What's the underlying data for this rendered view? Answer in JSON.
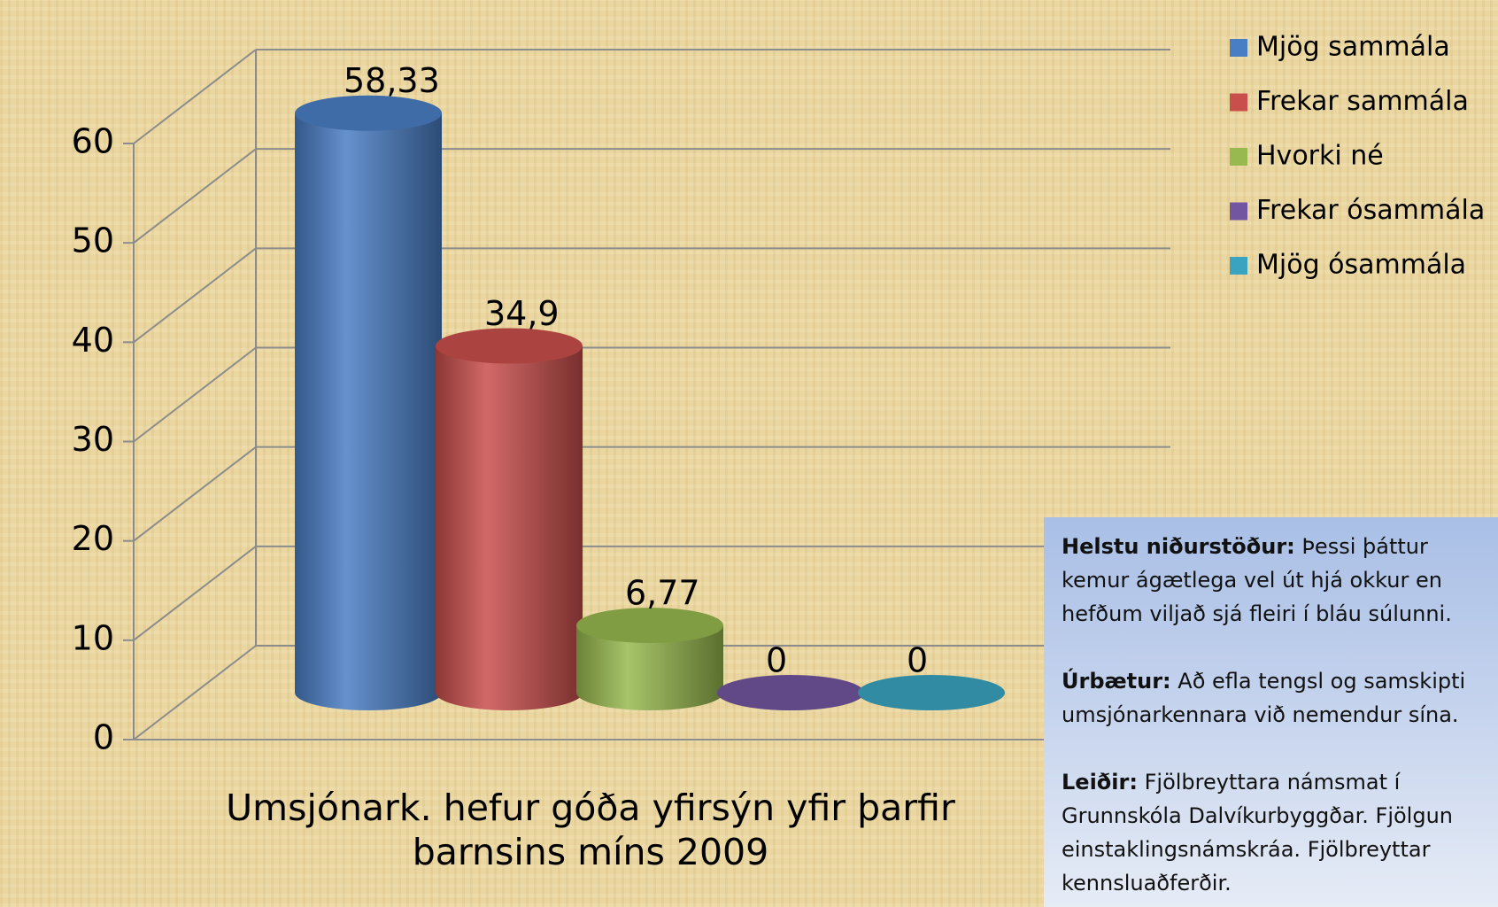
{
  "chart_data": {
    "type": "bar",
    "x_label": "Umsjónark. hefur góða yfirsýn yfir þarfir barnsins míns 2009",
    "ylim": [
      0,
      60
    ],
    "yticks": [
      0,
      10,
      20,
      30,
      40,
      50,
      60
    ],
    "grid": true,
    "legend": "right",
    "series": [
      {
        "name": "Mjög sammála",
        "color": "#4a7ec4",
        "values": [
          58.33
        ],
        "value_labels": [
          "58,33"
        ]
      },
      {
        "name": "Frekar sammála",
        "color": "#c94f4c",
        "values": [
          34.9
        ],
        "value_labels": [
          "34,9"
        ]
      },
      {
        "name": "Hvorki né",
        "color": "#97b94f",
        "values": [
          6.77
        ],
        "value_labels": [
          "6,77"
        ]
      },
      {
        "name": "Frekar ósammála",
        "color": "#7256a0",
        "values": [
          0
        ],
        "value_labels": [
          "0"
        ]
      },
      {
        "name": "Mjög ósammála",
        "color": "#3aa3bf",
        "values": [
          0
        ],
        "value_labels": [
          "0"
        ]
      }
    ]
  },
  "notes": [
    {
      "label": "Helstu niðurstöður:",
      "text": "Þessi þáttur kemur ágætlega vel út hjá okkur en hefðum viljað sjá fleiri í bláu súlunni."
    },
    {
      "label": "Úrbætur:",
      "text": "Að efla tengsl og  samskipti umsjónarkennara við nemendur sína."
    },
    {
      "label": "Leiðir:",
      "text": "Fjölbreyttara námsmat í Grunnskóla Dalvíkurbyggðar. Fjölgun einstaklingsnámskráa. Fjölbreyttar kennsluaðferðir."
    }
  ]
}
